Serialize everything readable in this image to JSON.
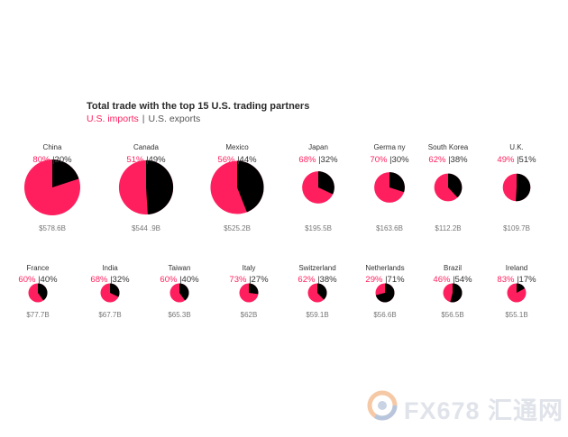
{
  "chart_data": {
    "type": "pie",
    "title": "Total trade with the top 15 U.S. trading partners",
    "legend": {
      "imports": "U.S. imports",
      "separator": "|",
      "exports": "U.S. exports",
      "placement": "top-left"
    },
    "colors": {
      "imports": "#ff1f5e",
      "exports": "#000000"
    },
    "countries": [
      {
        "name": "China",
        "imports_pct": 80,
        "exports_pct": 20,
        "imports_label": "80%",
        "exports_label": "|20%",
        "total_label": "$578.6B",
        "total": 578.6
      },
      {
        "name": "Canada",
        "imports_pct": 51,
        "exports_pct": 49,
        "imports_label": "51%",
        "exports_label": "|49%",
        "total_label": "$544 .9B",
        "total": 544.9
      },
      {
        "name": "Mexico",
        "imports_pct": 56,
        "exports_pct": 44,
        "imports_label": "56%",
        "exports_label": "|44%",
        "total_label": "$525.2B",
        "total": 525.2
      },
      {
        "name": "Japan",
        "imports_pct": 68,
        "exports_pct": 32,
        "imports_label": "68%",
        "exports_label": "|32%",
        "total_label": "$195.5B",
        "total": 195.5
      },
      {
        "name": "Germa ny",
        "imports_pct": 70,
        "exports_pct": 30,
        "imports_label": "70%",
        "exports_label": "|30%",
        "total_label": "$163.6B",
        "total": 163.6
      },
      {
        "name": "South  Korea",
        "imports_pct": 62,
        "exports_pct": 38,
        "imports_label": "62%",
        "exports_label": "|38%",
        "total_label": "$112.2B",
        "total": 112.2
      },
      {
        "name": "U.K.",
        "imports_pct": 49,
        "exports_pct": 51,
        "imports_label": "49%",
        "exports_label": "|51%",
        "total_label": "$109.7B",
        "total": 109.7
      },
      {
        "name": "France",
        "imports_pct": 60,
        "exports_pct": 40,
        "imports_label": "60%",
        "exports_label": "|40%",
        "total_label": "$77.7B",
        "total": 77.7
      },
      {
        "name": "India",
        "imports_pct": 68,
        "exports_pct": 32,
        "imports_label": "68%",
        "exports_label": "|32%",
        "total_label": "$67.7B",
        "total": 67.7
      },
      {
        "name": "Taiwan",
        "imports_pct": 60,
        "exports_pct": 40,
        "imports_label": "60%",
        "exports_label": "|40%",
        "total_label": "$65.3B",
        "total": 65.3
      },
      {
        "name": "Italy",
        "imports_pct": 73,
        "exports_pct": 27,
        "imports_label": "73%",
        "exports_label": "|27%",
        "total_label": "$62B",
        "total": 62
      },
      {
        "name": "Switzerland",
        "imports_pct": 62,
        "exports_pct": 38,
        "imports_label": "62%",
        "exports_label": "|38%",
        "total_label": "$59.1B",
        "total": 59.1
      },
      {
        "name": "Netherlands",
        "imports_pct": 29,
        "exports_pct": 71,
        "imports_label": "29%",
        "exports_label": "|71%",
        "total_label": "$56.6B",
        "total": 56.6
      },
      {
        "name": "Brazil",
        "imports_pct": 46,
        "exports_pct": 54,
        "imports_label": "46%",
        "exports_label": "|54%",
        "total_label": "$56.5B",
        "total": 56.5
      },
      {
        "name": "Ireland",
        "imports_pct": 83,
        "exports_pct": 17,
        "imports_label": "83%",
        "exports_label": "|17%",
        "total_label": "$55.1B",
        "total": 55.1
      }
    ]
  },
  "watermark": {
    "text": "FX678 汇通网",
    "icon": "fx678-logo-icon"
  }
}
